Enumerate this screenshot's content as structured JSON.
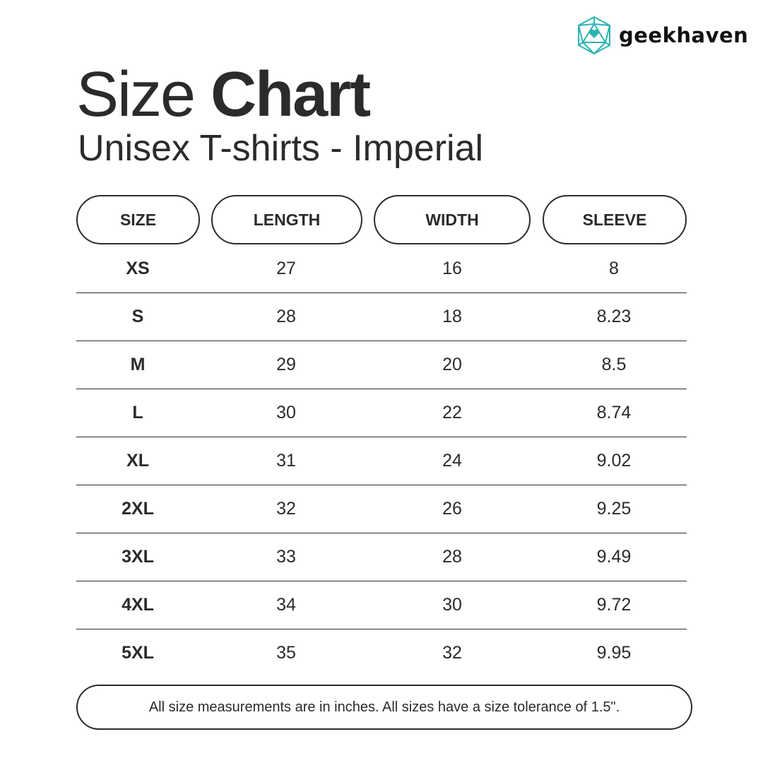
{
  "brand": {
    "name": "geekhaven",
    "logo_icon": "d20-heart-icon",
    "accent": "#2bb3b1"
  },
  "title": {
    "light": "Size",
    "bold": "Chart"
  },
  "subtitle": "Unisex T-shirts - Imperial",
  "headers": [
    "SIZE",
    "LENGTH",
    "WIDTH",
    "SLEEVE"
  ],
  "rows": [
    [
      "XS",
      "27",
      "16",
      "8"
    ],
    [
      "S",
      "28",
      "18",
      "8.23"
    ],
    [
      "M",
      "29",
      "20",
      "8.5"
    ],
    [
      "L",
      "30",
      "22",
      "8.74"
    ],
    [
      "XL",
      "31",
      "24",
      "9.02"
    ],
    [
      "2XL",
      "32",
      "26",
      "9.25"
    ],
    [
      "3XL",
      "33",
      "28",
      "9.49"
    ],
    [
      "4XL",
      "34",
      "30",
      "9.72"
    ],
    [
      "5XL",
      "35",
      "32",
      "9.95"
    ]
  ],
  "footer": "All size measurements are in inches. All sizes have a size tolerance of 1.5\"."
}
